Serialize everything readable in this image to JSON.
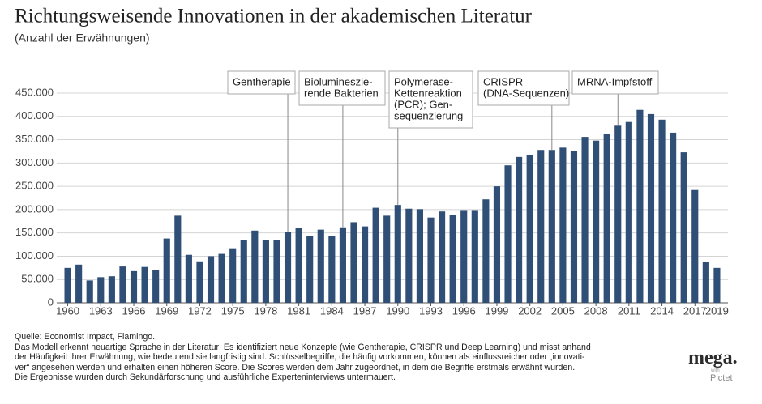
{
  "chart_data": {
    "type": "bar",
    "title": "Richtungsweisende Innovationen in der akademischen Literatur",
    "subtitle": "(Anzahl der Erwähnungen)",
    "x": [
      1960,
      1961,
      1962,
      1963,
      1964,
      1965,
      1966,
      1967,
      1968,
      1969,
      1970,
      1971,
      1972,
      1973,
      1974,
      1975,
      1976,
      1977,
      1978,
      1979,
      1980,
      1981,
      1982,
      1983,
      1984,
      1985,
      1986,
      1987,
      1988,
      1989,
      1990,
      1991,
      1992,
      1993,
      1994,
      1995,
      1996,
      1997,
      1998,
      1999,
      2000,
      2001,
      2002,
      2003,
      2004,
      2005,
      2006,
      2007,
      2008,
      2009,
      2010,
      2011,
      2012,
      2013,
      2014,
      2015,
      2016,
      2017,
      2018,
      2019
    ],
    "values": [
      75000,
      82000,
      48000,
      55000,
      57000,
      78000,
      68000,
      77000,
      70000,
      138000,
      187000,
      103000,
      89000,
      100000,
      105000,
      117000,
      134000,
      155000,
      135000,
      134000,
      152000,
      160000,
      143000,
      157000,
      143000,
      162000,
      173000,
      164000,
      204000,
      187000,
      210000,
      202000,
      201000,
      183000,
      196000,
      188000,
      199000,
      199000,
      222000,
      250000,
      295000,
      313000,
      318000,
      328000,
      328000,
      333000,
      325000,
      356000,
      348000,
      363000,
      380000,
      388000,
      414000,
      405000,
      393000,
      365000,
      323000,
      242000,
      87000,
      75000
    ],
    "color": "#2f4f77",
    "xlim": [
      1959,
      2020
    ],
    "xticks": [
      1960,
      1963,
      1966,
      1969,
      1972,
      1975,
      1978,
      1981,
      1984,
      1987,
      1990,
      1993,
      1996,
      1999,
      2002,
      2005,
      2008,
      2011,
      2014,
      2017,
      2019
    ],
    "ylim": [
      0,
      450000
    ],
    "yticks": [
      0,
      {
        "value": 50000,
        "label": "50.000"
      },
      {
        "value": 100000,
        "label": "100.000"
      },
      {
        "value": 150000,
        "label": "150.000"
      },
      {
        "value": 200000,
        "label": "200.000"
      },
      {
        "value": 250000,
        "label": "250.000"
      },
      {
        "value": 300000,
        "label": "300.000"
      },
      {
        "value": 350000,
        "label": "350.000"
      },
      {
        "value": 400000,
        "label": "400.000"
      },
      {
        "value": 450000,
        "label": "450.000"
      }
    ],
    "grid": true,
    "annotations": [
      {
        "x": 1980,
        "lines": [
          "Gentherapie"
        ]
      },
      {
        "x": 1985,
        "lines": [
          "Biolumineszie-",
          "rende Bakterien"
        ]
      },
      {
        "x": 1990,
        "lines": [
          "Polymerase-",
          "Kettenreaktion",
          "(PCR); Gen-",
          "sequenzierung"
        ]
      },
      {
        "x": 2004,
        "lines": [
          "CRISPR",
          "(DNA-Sequenzen)"
        ]
      },
      {
        "x": 2010,
        "lines": [
          "MRNA-Impfstoff"
        ]
      }
    ]
  },
  "footer": {
    "source": "Quelle: Economist Impact, Flamingo.",
    "note": [
      "Das Modell erkennt neuartige Sprache in der Literatur: Es identifiziert neue Konzepte (wie Gentherapie, CRISPR und Deep Learning) und misst anhand",
      "der Häufigkeit ihrer Erwähnung, wie bedeutend sie langfristig sind. Schlüsselbegriffe, die häufig vorkommen, können als einflussreicher oder „innovati-",
      "ver“ angesehen werden und erhalten einen höheren Score. Die Scores werden dem Jahr zugeordnet, in dem die Begriffe erstmals erwähnt wurden.",
      "Die Ergebnisse wurden durch Sekundärforschung und ausführliche Experteninterviews untermauert."
    ]
  },
  "logo": {
    "name": "mega.",
    "with": "with",
    "partner": "Pictet"
  }
}
